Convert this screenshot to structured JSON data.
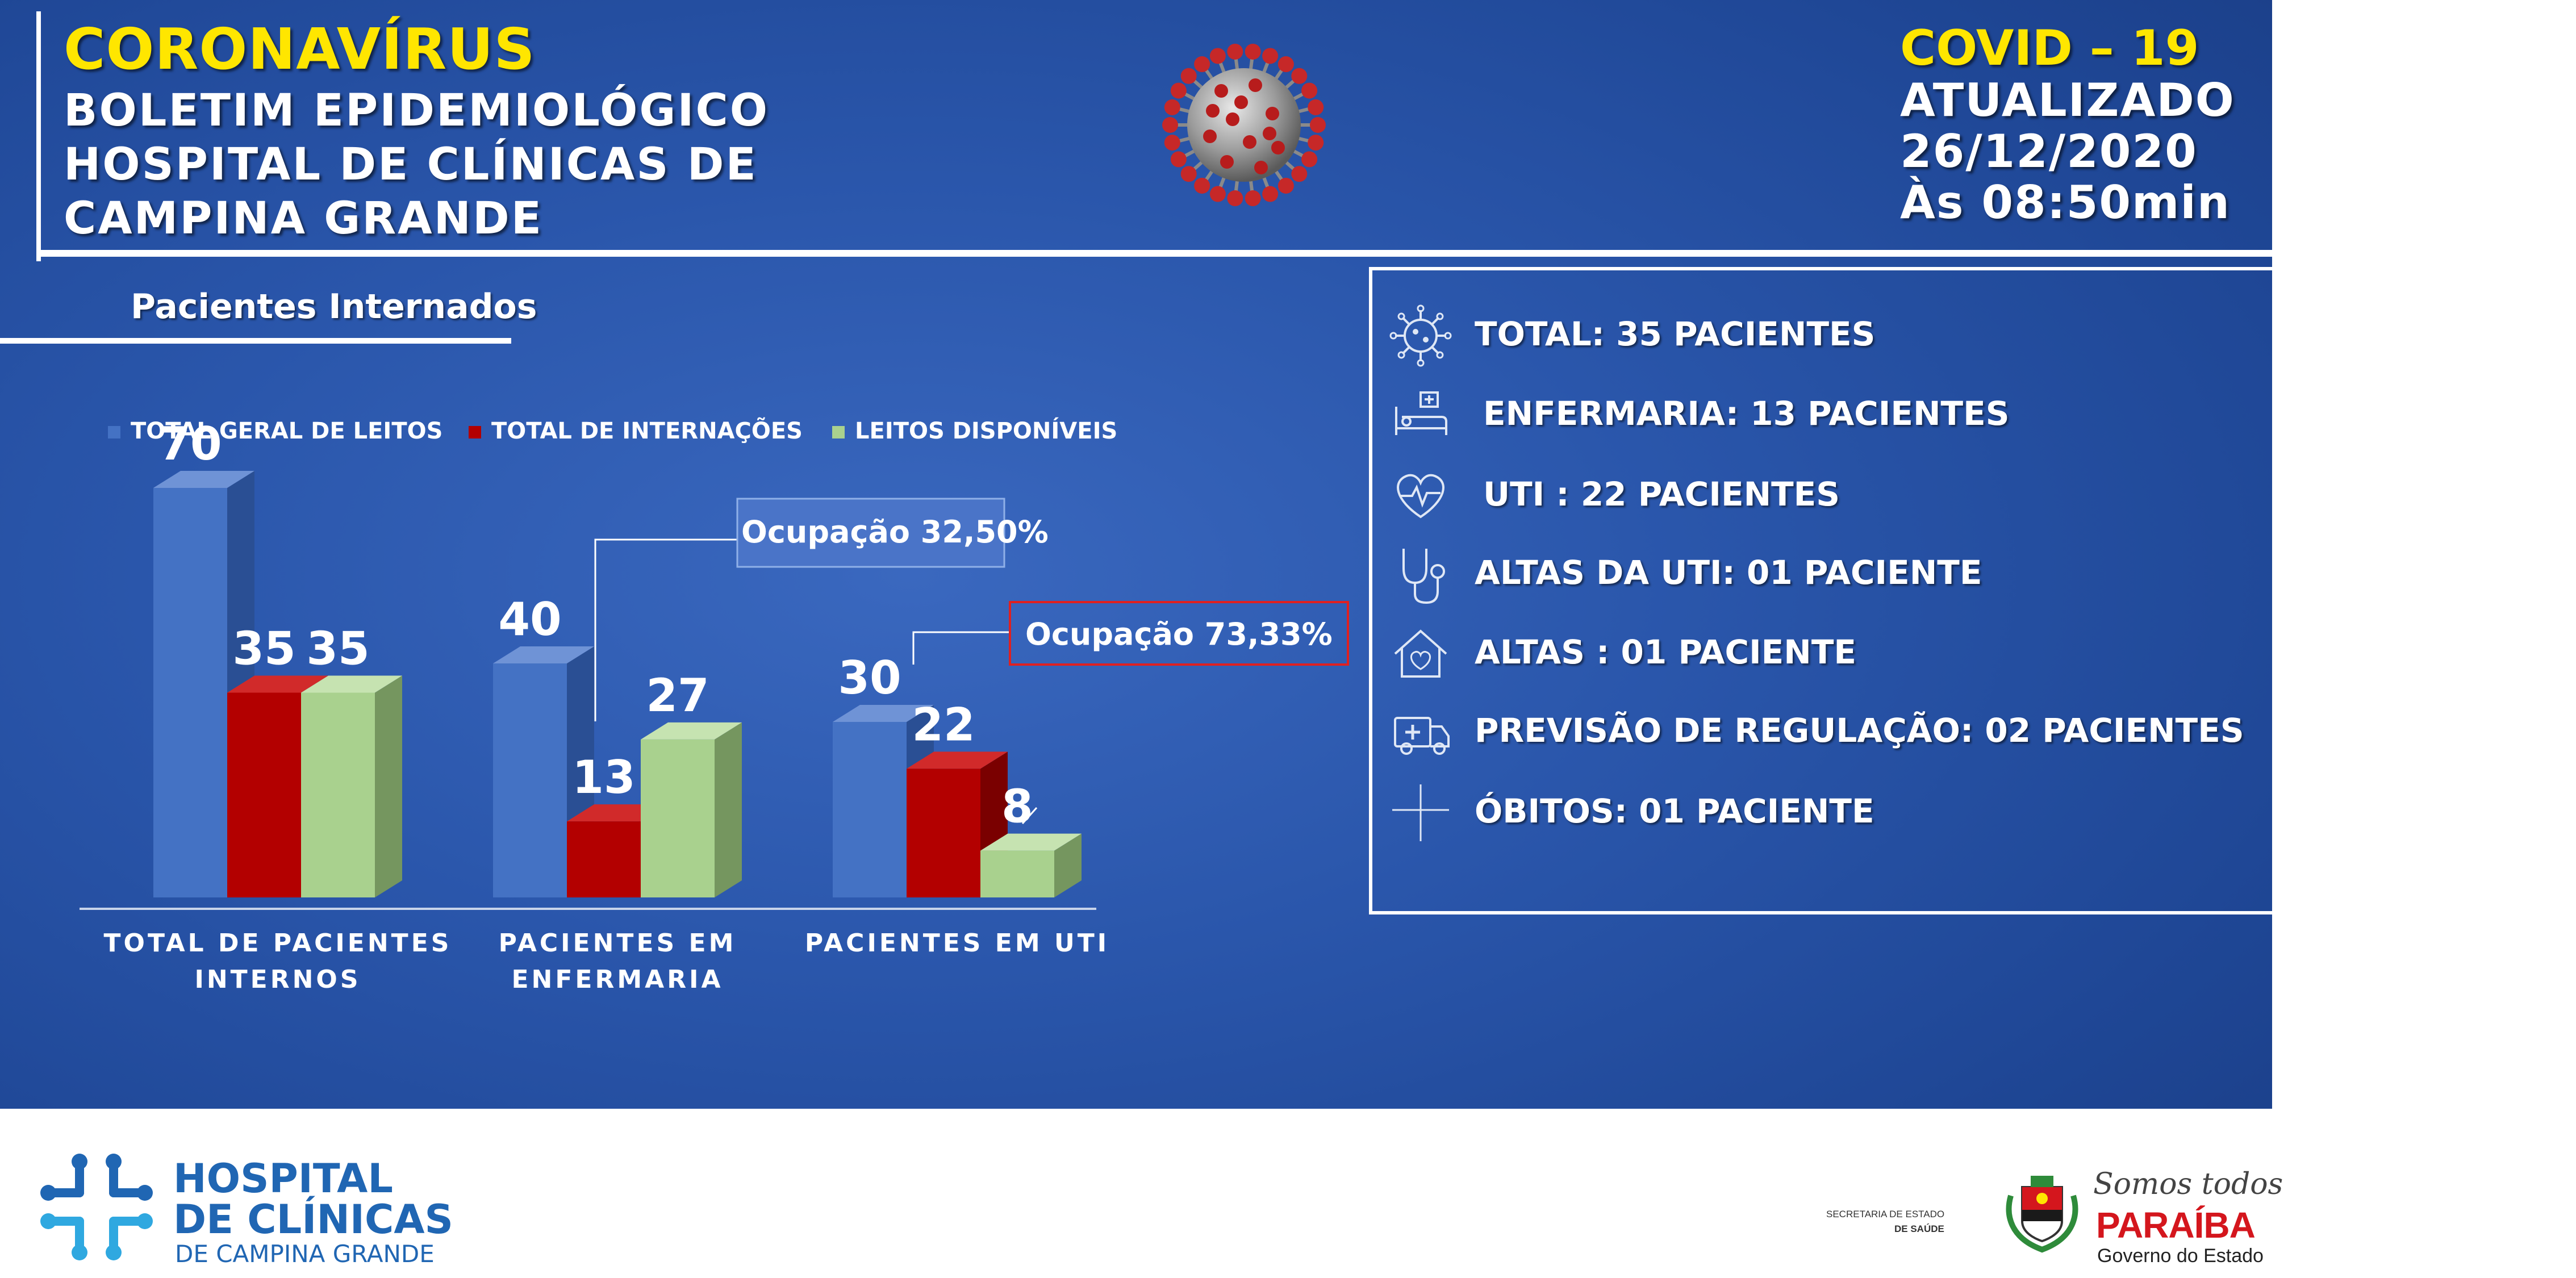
{
  "header": {
    "title": "CORONAVÍRUS",
    "line1": "BOLETIM EPIDEMIOLÓGICO",
    "line2": "HOSPITAL DE CLÍNICAS DE",
    "line3": "CAMPINA GRANDE",
    "covid": "COVID – 19",
    "updated": "ATUALIZADO",
    "date": "26/12/2020",
    "time": "Às 08:50min"
  },
  "section_title": "Pacientes Internados",
  "colors": {
    "blue": "#4472c4",
    "red": "#c00000",
    "green": "#a9d18e",
    "accent_yellow": "#ffe600"
  },
  "chart_data": {
    "type": "bar",
    "categories": [
      "TOTAL DE PACIENTES INTERNOS",
      "PACIENTES EM ENFERMARIA",
      "PACIENTES EM UTI"
    ],
    "series": [
      {
        "name": "TOTAL GERAL DE LEITOS",
        "values": [
          70,
          40,
          30
        ]
      },
      {
        "name": "TOTAL DE INTERNAÇÕES",
        "values": [
          35,
          13,
          22
        ]
      },
      {
        "name": "LEITOS DISPONÍVEIS",
        "values": [
          35,
          27,
          8
        ]
      }
    ],
    "annotations": [
      {
        "text": "Ocupação 32,50%",
        "category": "PACIENTES EM ENFERMARIA"
      },
      {
        "text": "Ocupação 73,33%",
        "category": "PACIENTES EM UTI"
      }
    ],
    "ylim": [
      0,
      70
    ],
    "grid": false,
    "legend": "top",
    "style": "3d"
  },
  "summary": {
    "items": [
      {
        "icon": "virus-icon",
        "text": "TOTAL: 35 PACIENTES"
      },
      {
        "icon": "hospital-bed-icon",
        "text": "ENFERMARIA: 13 PACIENTES"
      },
      {
        "icon": "heartbeat-icon",
        "text": "UTI : 22 PACIENTES"
      },
      {
        "icon": "stethoscope-icon",
        "text": "ALTAS DA UTI: 01 PACIENTE"
      },
      {
        "icon": "home-heart-icon",
        "text": "ALTAS : 01 PACIENTE"
      },
      {
        "icon": "ambulance-icon",
        "text": "PREVISÃO DE REGULAÇÃO: 02 PACIENTES"
      },
      {
        "icon": "cross-icon",
        "text": "ÓBITOS: 01 PACIENTE"
      }
    ]
  },
  "footer": {
    "hospital_line1": "HOSPITAL",
    "hospital_line2": "DE CLÍNICAS",
    "hospital_line3": "DE CAMPINA GRANDE",
    "ses_line1": "SECRETARIA DE ESTADO",
    "ses_line2": "DE SAÚDE",
    "pb_slogan": "Somos todos",
    "pb_name": "PARAÍBA",
    "pb_gov": "Governo do Estado"
  }
}
